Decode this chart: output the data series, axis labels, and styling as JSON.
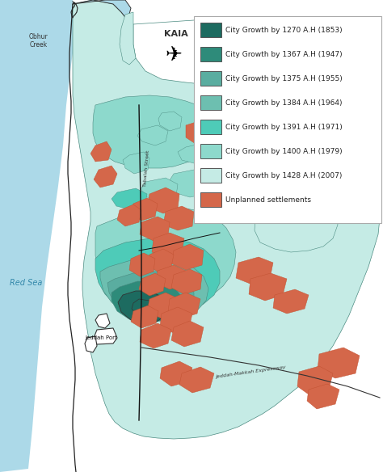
{
  "legend_entries": [
    {
      "label": "City Growth by 1270 A.H (1853)",
      "color": "#1d6b60"
    },
    {
      "label": "City Growth by 1367 A.H (1947)",
      "color": "#2e8b7a"
    },
    {
      "label": "City Growth by 1375 A.H (1955)",
      "color": "#5aada0"
    },
    {
      "label": "City Growth by 1384 A.H (1964)",
      "color": "#6dbfb0"
    },
    {
      "label": "City Growth by 1391 A.H (1971)",
      "color": "#4ecbb8"
    },
    {
      "label": "City Growth by 1400 A.H (1979)",
      "color": "#8dd9cc"
    },
    {
      "label": "City Growth by 1428 A.H (2007)",
      "color": "#c5ebe5"
    },
    {
      "label": "Unplanned settlements",
      "color": "#d4674a"
    }
  ],
  "sea_color": "#acd9e8",
  "background_color": "#ffffff",
  "label_red_sea": "Red Sea",
  "label_kaia": "KAIA",
  "label_creek": "Obhur\nCreek",
  "label_port": "Jeddah Port",
  "label_tabalah": "Tabalah Street",
  "label_road": "Jeddah-Makkah Expressway"
}
